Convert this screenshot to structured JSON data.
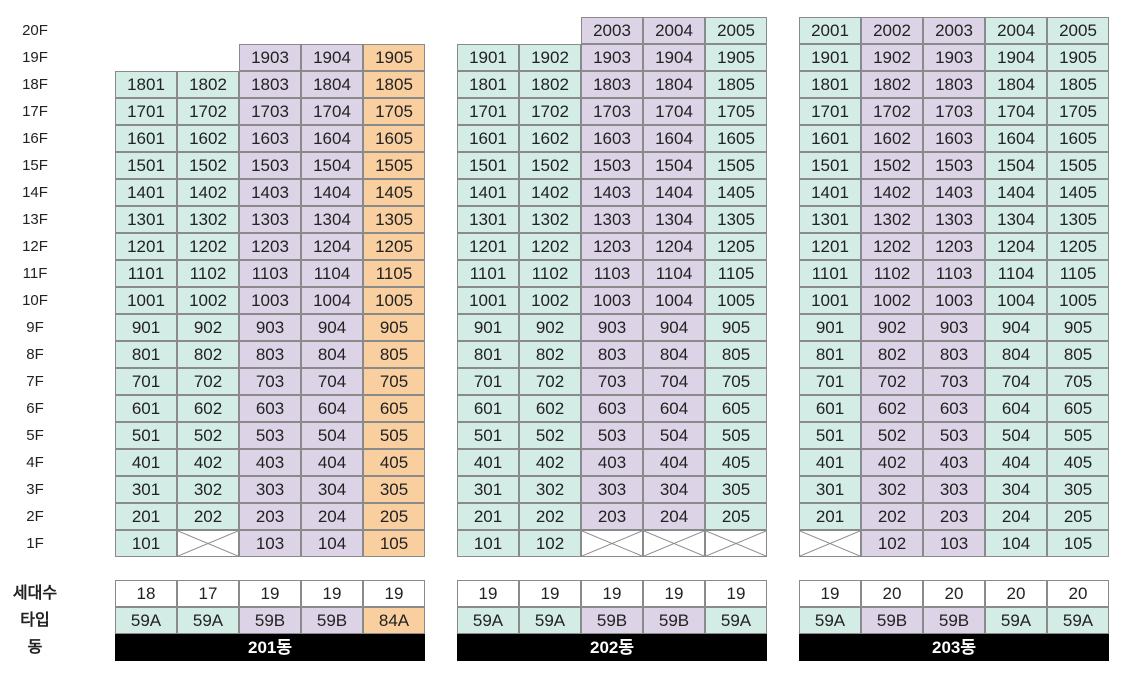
{
  "floors": [
    "20F",
    "19F",
    "18F",
    "17F",
    "16F",
    "15F",
    "14F",
    "13F",
    "12F",
    "11F",
    "10F",
    "9F",
    "8F",
    "7F",
    "6F",
    "5F",
    "4F",
    "3F",
    "2F",
    "1F"
  ],
  "row_labels": {
    "households": "세대수",
    "type": "타입",
    "building": "동"
  },
  "colors": {
    "59A": "#d3ece6",
    "59B": "#ddd3e6",
    "84A": "#f9cfa0",
    "bar": "#000000",
    "border": "#8a8a8a"
  },
  "buildings": [
    {
      "name": "201동",
      "columns": [
        {
          "line": "01",
          "top_floor": 18,
          "missing_floors": [],
          "households": "18",
          "type": "59A"
        },
        {
          "line": "02",
          "top_floor": 18,
          "missing_floors": [
            1
          ],
          "households": "17",
          "type": "59A"
        },
        {
          "line": "03",
          "top_floor": 19,
          "missing_floors": [],
          "households": "19",
          "type": "59B"
        },
        {
          "line": "04",
          "top_floor": 19,
          "missing_floors": [],
          "households": "19",
          "type": "59B"
        },
        {
          "line": "05",
          "top_floor": 19,
          "missing_floors": [],
          "households": "19",
          "type": "84A"
        }
      ]
    },
    {
      "name": "202동",
      "columns": [
        {
          "line": "01",
          "top_floor": 19,
          "missing_floors": [],
          "households": "19",
          "type": "59A"
        },
        {
          "line": "02",
          "top_floor": 19,
          "missing_floors": [],
          "households": "19",
          "type": "59A"
        },
        {
          "line": "03",
          "top_floor": 20,
          "missing_floors": [
            1
          ],
          "households": "19",
          "type": "59B"
        },
        {
          "line": "04",
          "top_floor": 20,
          "missing_floors": [
            1
          ],
          "households": "19",
          "type": "59B"
        },
        {
          "line": "05",
          "top_floor": 20,
          "missing_floors": [
            1
          ],
          "households": "19",
          "type": "59A"
        }
      ]
    },
    {
      "name": "203동",
      "columns": [
        {
          "line": "01",
          "top_floor": 20,
          "missing_floors": [
            1
          ],
          "households": "19",
          "type": "59A"
        },
        {
          "line": "02",
          "top_floor": 20,
          "missing_floors": [],
          "households": "20",
          "type": "59B"
        },
        {
          "line": "03",
          "top_floor": 20,
          "missing_floors": [],
          "households": "20",
          "type": "59B"
        },
        {
          "line": "04",
          "top_floor": 20,
          "missing_floors": [],
          "households": "20",
          "type": "59A"
        },
        {
          "line": "05",
          "top_floor": 20,
          "missing_floors": [],
          "households": "20",
          "type": "59A"
        }
      ]
    }
  ]
}
